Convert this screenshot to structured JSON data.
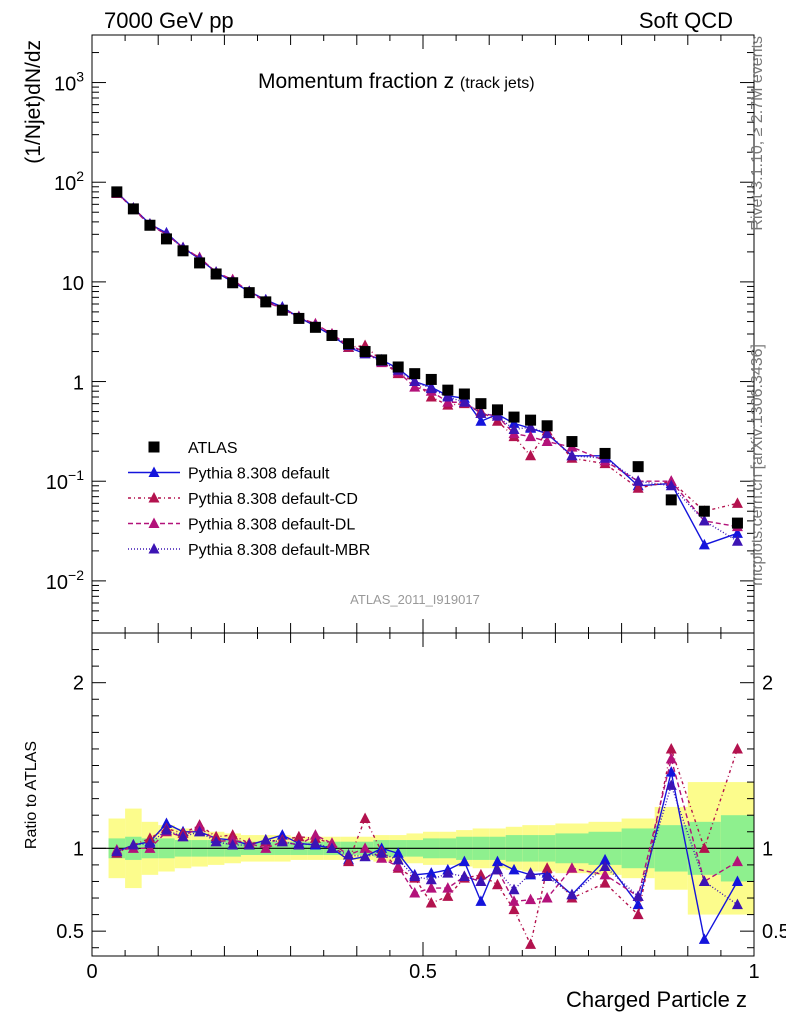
{
  "header": {
    "left": "7000 GeV pp",
    "right": "Soft QCD"
  },
  "side_labels": {
    "rivet": "Rivet 3.1.10, ≥ 2.7M events",
    "mcplots": "mcplots.cern.ch [arXiv:1306.3436]"
  },
  "chart_data": [
    {
      "type": "scatter",
      "title_main": "Momentum fraction z",
      "title_sub": "(track jets)",
      "watermark": "ATLAS_2011_I919017",
      "ylabel": "(1/Njet)dN/dz",
      "xlabel": "Charged Particle z",
      "xlim": [
        0,
        1
      ],
      "ylim": [
        0.003,
        3000
      ],
      "yscale": "log",
      "ytick_labels": [
        {
          "value": 0.01,
          "base": "10",
          "exp": "−2"
        },
        {
          "value": 0.1,
          "base": "10",
          "exp": "−1"
        },
        {
          "value": 1,
          "base": "1",
          "exp": ""
        },
        {
          "value": 10,
          "base": "10",
          "exp": ""
        },
        {
          "value": 100,
          "base": "10",
          "exp": "2"
        },
        {
          "value": 1000,
          "base": "10",
          "exp": "3"
        }
      ],
      "legend_position": "bottom-left",
      "x": [
        0.0375,
        0.0625,
        0.0875,
        0.1125,
        0.1375,
        0.1625,
        0.1875,
        0.2125,
        0.2375,
        0.2625,
        0.2875,
        0.3125,
        0.3375,
        0.3625,
        0.3875,
        0.4125,
        0.4375,
        0.4625,
        0.4875,
        0.5125,
        0.5375,
        0.5625,
        0.5875,
        0.6125,
        0.6375,
        0.6625,
        0.6875,
        0.725,
        0.775,
        0.825,
        0.875,
        0.925,
        0.975
      ],
      "series": [
        {
          "name": "ATLAS",
          "color": "#000000",
          "marker": "square",
          "dash": "none",
          "values": [
            80,
            54,
            37,
            27,
            20.5,
            15.5,
            12,
            9.8,
            7.8,
            6.3,
            5.2,
            4.3,
            3.5,
            2.9,
            2.4,
            2.0,
            1.65,
            1.4,
            1.2,
            1.05,
            0.82,
            0.75,
            0.6,
            0.52,
            0.44,
            0.41,
            0.36,
            0.25,
            0.19,
            0.14,
            0.065,
            0.05,
            0.038
          ]
        },
        {
          "name": "Pythia 8.308 default",
          "color": "#1414dc",
          "marker": "triangle",
          "dash": "none",
          "values": [
            79,
            55,
            38,
            31,
            22,
            17,
            12.5,
            10,
            8,
            6.6,
            5.6,
            4.4,
            3.6,
            2.9,
            2.2,
            1.9,
            1.65,
            1.35,
            1.0,
            0.88,
            0.72,
            0.68,
            0.4,
            0.47,
            0.38,
            0.34,
            0.3,
            0.18,
            0.18,
            0.09,
            0.095,
            0.023,
            0.03
          ]
        },
        {
          "name": "Pythia 8.308 default-CD",
          "color": "#b3124e",
          "marker": "triangle",
          "dash": "3,3,1,3",
          "values": [
            77,
            55,
            38,
            30,
            22,
            17.5,
            12.5,
            10.5,
            8,
            6.5,
            5.4,
            4.5,
            3.7,
            3.0,
            2.2,
            2.3,
            1.6,
            1.2,
            1.0,
            0.7,
            0.58,
            0.6,
            0.5,
            0.4,
            0.28,
            0.18,
            0.32,
            0.17,
            0.15,
            0.085,
            0.1,
            0.05,
            0.06
          ]
        },
        {
          "name": "Pythia 8.308 default-DL",
          "color": "#b3127a",
          "marker": "triangle",
          "dash": "5,3",
          "values": [
            79,
            54,
            37,
            30,
            22,
            17.5,
            12.5,
            10.5,
            8,
            6.3,
            5.4,
            4.4,
            3.8,
            3.0,
            2.3,
            2.0,
            1.55,
            1.25,
            0.88,
            0.8,
            0.62,
            0.62,
            0.48,
            0.45,
            0.3,
            0.28,
            0.25,
            0.22,
            0.16,
            0.1,
            0.1,
            0.04,
            0.035
          ]
        },
        {
          "name": "Pythia 8.308 default-MBR",
          "color": "#3c14b4",
          "marker": "triangle",
          "dash": "1,2",
          "values": [
            78,
            55,
            38,
            30,
            22,
            17,
            12.5,
            10,
            8,
            6.6,
            5.4,
            4.4,
            3.6,
            2.9,
            2.3,
            1.9,
            1.6,
            1.3,
            1.0,
            0.85,
            0.7,
            0.62,
            0.48,
            0.45,
            0.33,
            0.35,
            0.3,
            0.18,
            0.17,
            0.1,
            0.09,
            0.04,
            0.025
          ]
        }
      ]
    },
    {
      "type": "scatter",
      "ylabel": "Ratio to ATLAS",
      "xlabel": "Charged Particle z",
      "xlim": [
        0,
        1
      ],
      "ylim": [
        0.35,
        2.3
      ],
      "x_tick_labels": [
        {
          "value": 0,
          "label": "0"
        },
        {
          "value": 0.5,
          "label": "0.5"
        },
        {
          "value": 1,
          "label": "1"
        }
      ],
      "y_tick_labels": [
        {
          "value": 0.5,
          "label": "0.5"
        },
        {
          "value": 1,
          "label": "1"
        },
        {
          "value": 2,
          "label": "2"
        }
      ],
      "band_colors": {
        "inner": "#8ef08e",
        "outer": "#fcfc8c"
      },
      "band_edges": [
        0.025,
        0.05,
        0.075,
        0.1,
        0.125,
        0.15,
        0.175,
        0.2,
        0.225,
        0.25,
        0.275,
        0.3,
        0.325,
        0.35,
        0.375,
        0.4,
        0.425,
        0.45,
        0.475,
        0.5,
        0.525,
        0.55,
        0.575,
        0.6,
        0.625,
        0.65,
        0.675,
        0.7,
        0.75,
        0.8,
        0.85,
        0.9,
        0.95,
        1.0
      ],
      "band_inner": [
        0.06,
        0.07,
        0.06,
        0.06,
        0.05,
        0.05,
        0.05,
        0.05,
        0.04,
        0.04,
        0.04,
        0.04,
        0.04,
        0.04,
        0.04,
        0.04,
        0.05,
        0.05,
        0.05,
        0.06,
        0.06,
        0.07,
        0.07,
        0.07,
        0.08,
        0.08,
        0.08,
        0.09,
        0.1,
        0.12,
        0.14,
        0.16,
        0.2
      ],
      "band_outer": [
        0.18,
        0.24,
        0.16,
        0.14,
        0.12,
        0.11,
        0.1,
        0.09,
        0.08,
        0.08,
        0.08,
        0.07,
        0.07,
        0.07,
        0.07,
        0.07,
        0.08,
        0.08,
        0.09,
        0.1,
        0.1,
        0.11,
        0.12,
        0.12,
        0.13,
        0.14,
        0.14,
        0.15,
        0.16,
        0.18,
        0.25,
        0.4,
        0.4
      ],
      "series": [
        {
          "name": "Pythia 8.308 default",
          "color": "#1414dc",
          "dash": "none",
          "values": [
            0.98,
            1.02,
            1.04,
            1.15,
            1.1,
            1.1,
            1.06,
            1.05,
            1.02,
            1.05,
            1.08,
            1.03,
            1.02,
            1.0,
            0.93,
            0.95,
            1.0,
            0.97,
            0.84,
            0.85,
            0.87,
            0.92,
            0.68,
            0.92,
            0.87,
            0.84,
            0.85,
            0.72,
            0.93,
            0.66,
            1.46,
            0.45,
            0.8
          ]
        },
        {
          "name": "Pythia 8.308 default-CD",
          "color": "#b3124e",
          "dash": "3,3,1,3",
          "values": [
            0.97,
            1.02,
            1.06,
            1.12,
            1.09,
            1.14,
            1.07,
            1.08,
            1.03,
            1.04,
            1.05,
            1.07,
            1.06,
            1.03,
            0.92,
            1.18,
            0.98,
            0.88,
            0.82,
            0.67,
            0.71,
            0.82,
            0.84,
            0.78,
            0.63,
            0.42,
            0.88,
            0.7,
            0.79,
            0.6,
            1.6,
            1.0,
            1.6
          ]
        },
        {
          "name": "Pythia 8.308 default-DL",
          "color": "#b3127a",
          "dash": "5,3",
          "values": [
            0.99,
            1.0,
            1.0,
            1.1,
            1.07,
            1.13,
            1.04,
            1.05,
            1.03,
            1.0,
            1.04,
            1.02,
            1.08,
            1.03,
            0.96,
            1.0,
            0.94,
            0.89,
            0.73,
            0.76,
            0.76,
            0.83,
            0.8,
            0.87,
            0.68,
            0.69,
            0.7,
            0.88,
            0.84,
            0.71,
            1.54,
            0.8,
            0.92
          ]
        },
        {
          "name": "Pythia 8.308 default-MBR",
          "color": "#3c14b4",
          "dash": "1,2",
          "values": [
            0.98,
            1.02,
            1.03,
            1.11,
            1.07,
            1.1,
            1.04,
            1.02,
            1.02,
            1.05,
            1.04,
            1.02,
            1.03,
            1.0,
            0.96,
            0.95,
            0.97,
            0.93,
            0.83,
            0.81,
            0.85,
            0.83,
            0.8,
            0.87,
            0.75,
            0.85,
            0.83,
            0.72,
            0.89,
            0.71,
            1.38,
            0.8,
            0.66
          ]
        }
      ]
    }
  ]
}
